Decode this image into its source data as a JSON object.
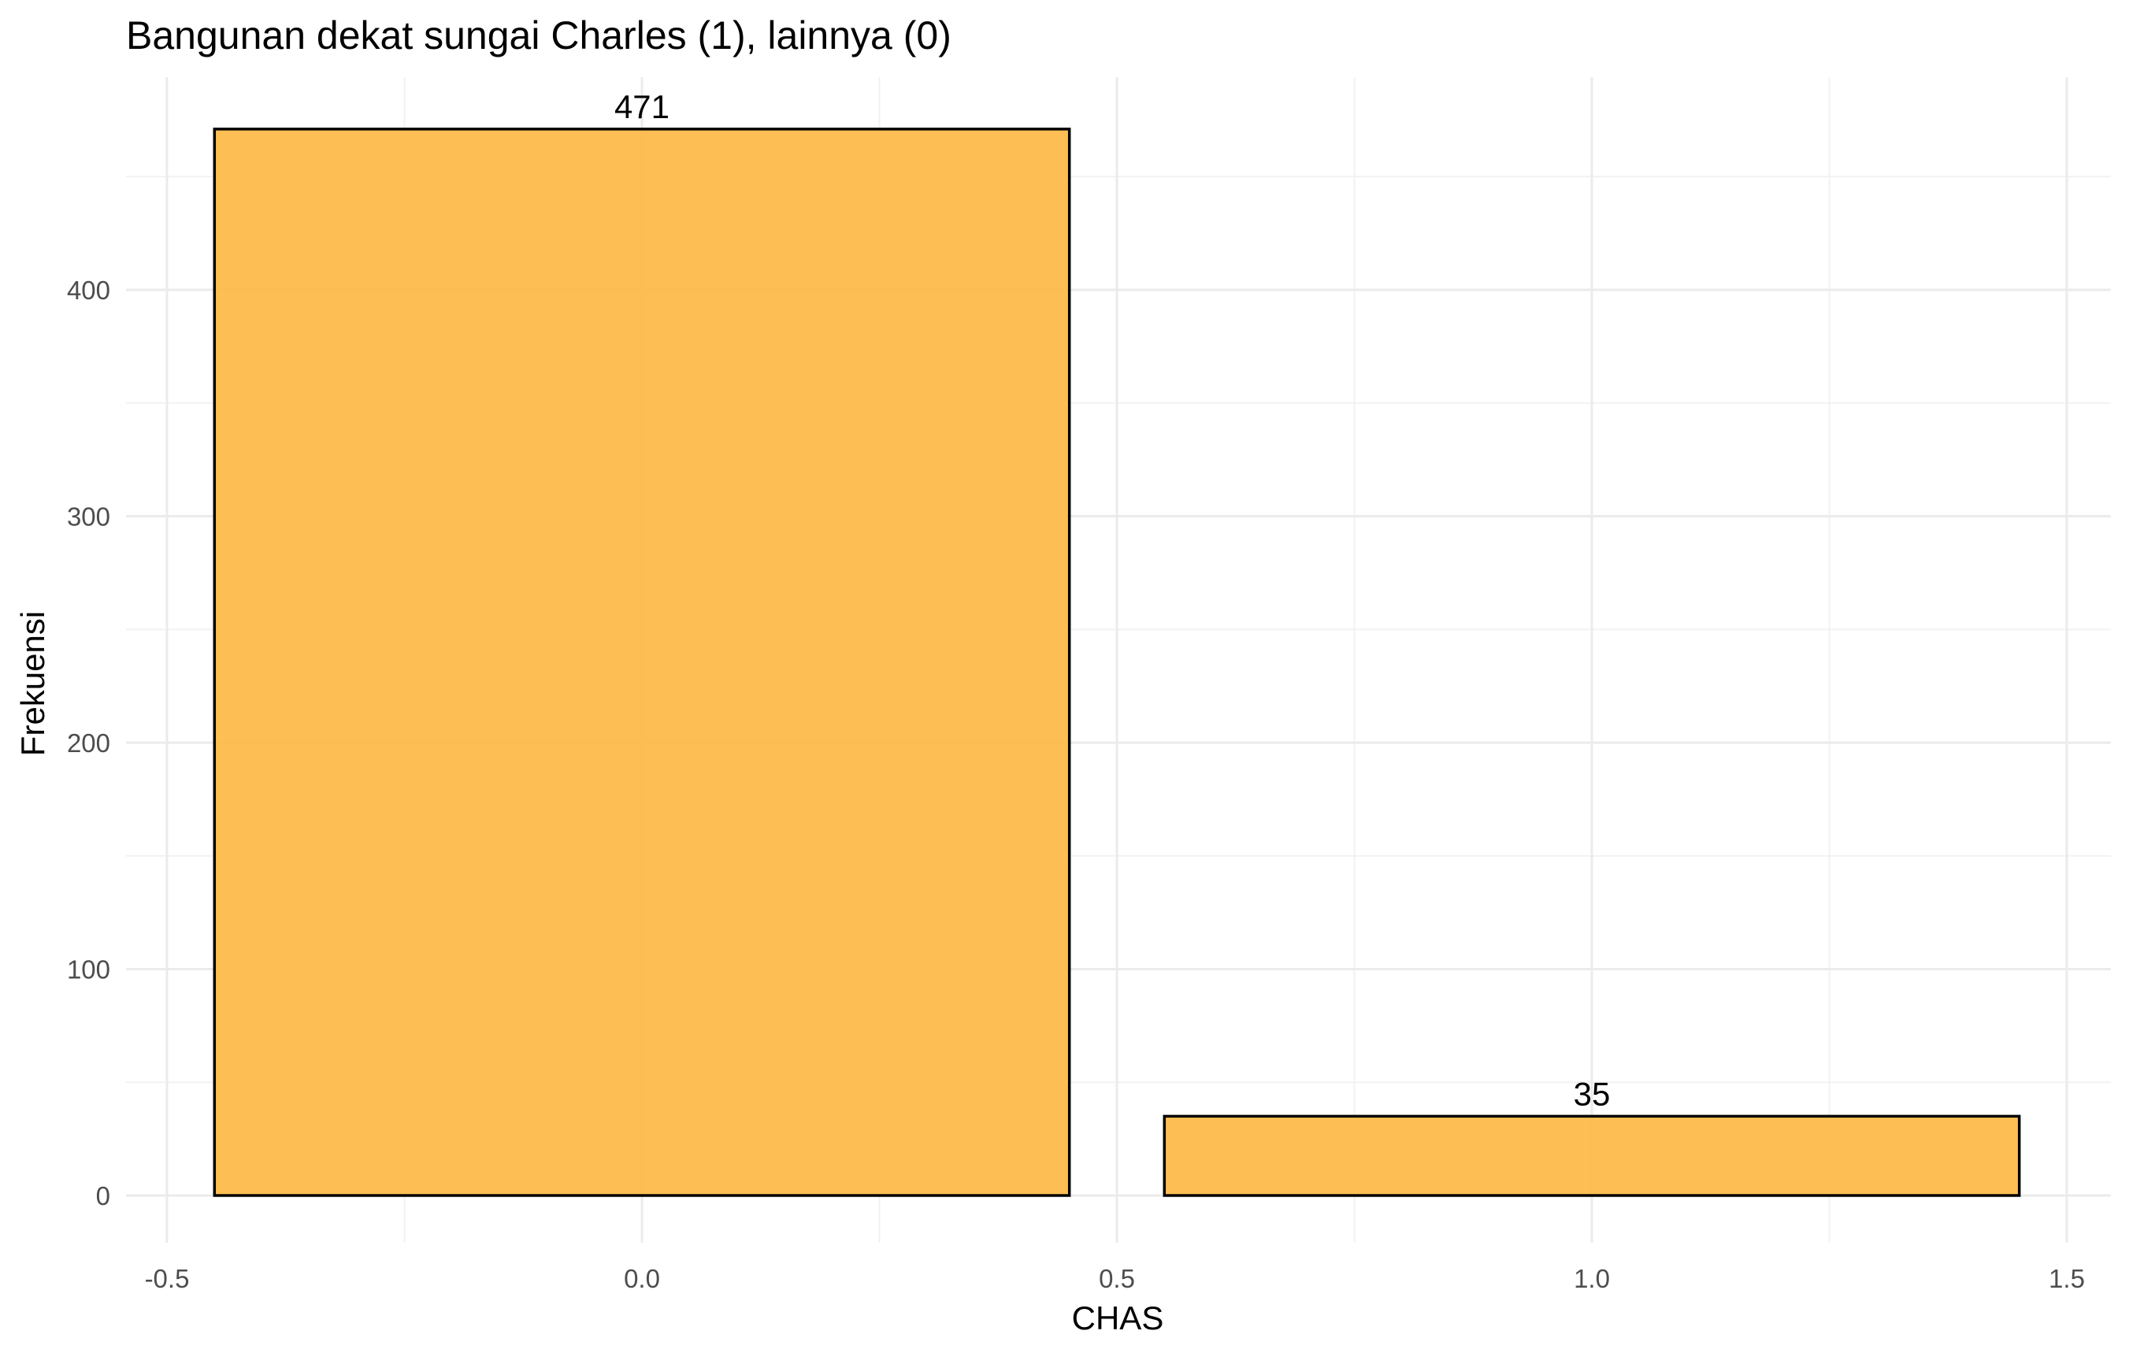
{
  "chart_data": {
    "type": "bar",
    "title": "Bangunan dekat sungai Charles (1), lainnya (0)",
    "xlabel": "CHAS",
    "ylabel": "Frekuensi",
    "x": [
      0,
      1
    ],
    "values": [
      471,
      35
    ],
    "data_labels": [
      "471",
      "35"
    ],
    "bar_width": 0.9,
    "xlim": [
      -0.55,
      1.55
    ],
    "ylim": [
      0,
      471
    ],
    "x_ticks": [
      -0.5,
      0.0,
      0.5,
      1.0,
      1.5
    ],
    "x_tick_labels": [
      "-0.5",
      "0.0",
      "0.5",
      "1.0",
      "1.5"
    ],
    "y_ticks": [
      0,
      100,
      200,
      300,
      400
    ],
    "y_tick_labels": [
      "0",
      "100",
      "200",
      "300",
      "400"
    ],
    "grid": true,
    "legend": "none",
    "bar_fill": "#fdbb4a",
    "bar_stroke": "#000000"
  }
}
